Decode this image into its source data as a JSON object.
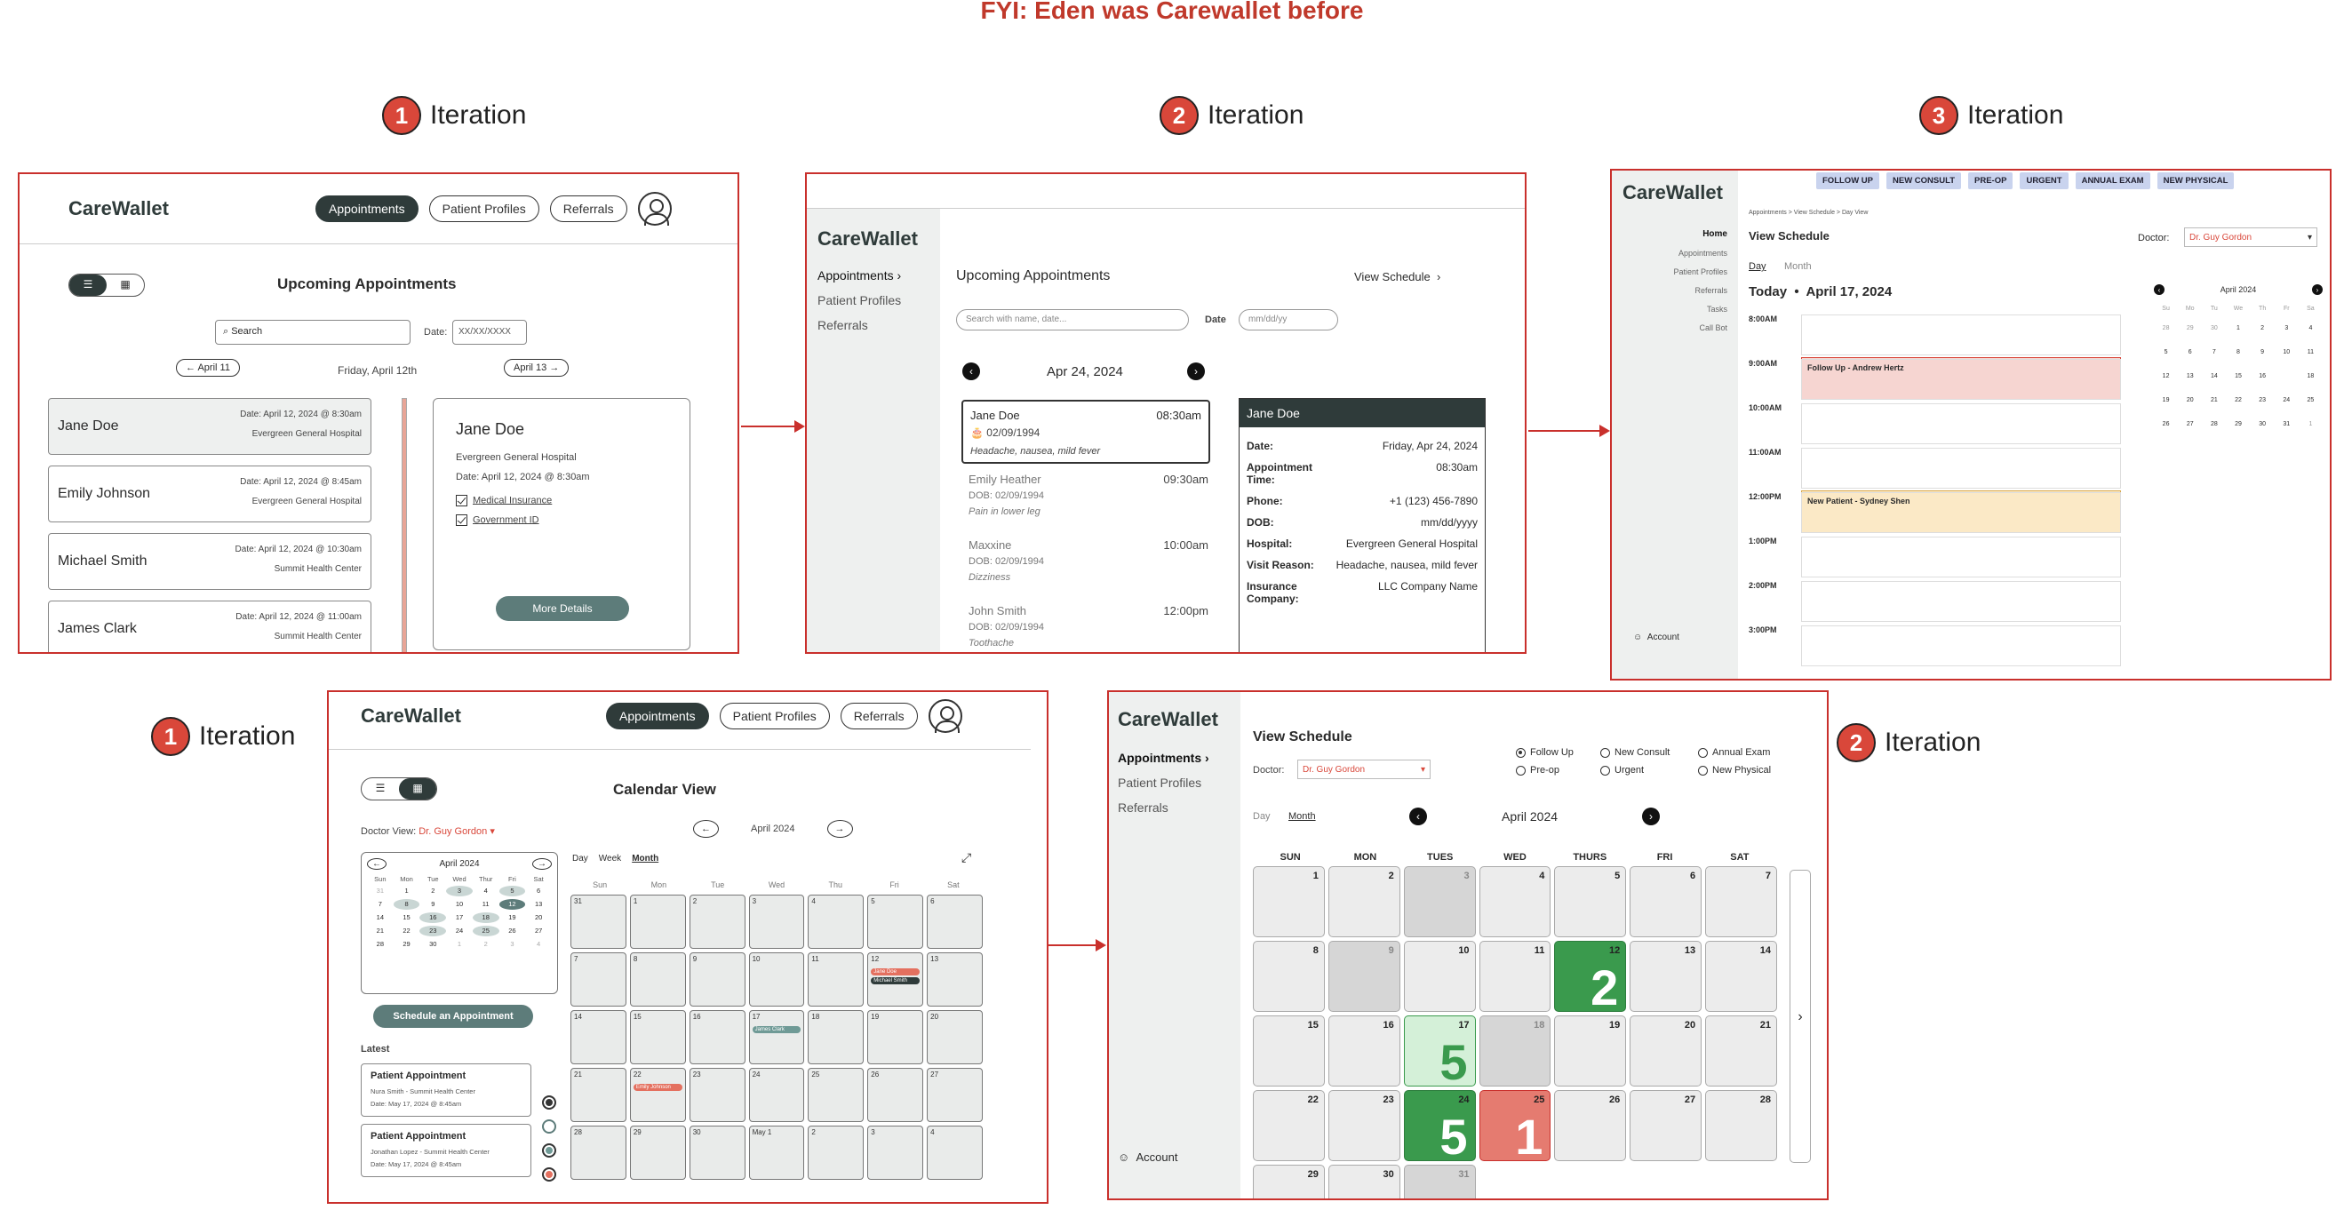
{
  "heading": "FYI: Eden was Carewallet before",
  "iterations": {
    "a": "1",
    "b": "2",
    "c": "3",
    "d": "1",
    "e": "2",
    "label": "Iteration"
  },
  "f1": {
    "logo": "CareWallet",
    "nav": [
      "Appointments",
      "Patient Profiles",
      "Referrals"
    ],
    "title": "Upcoming Appointments",
    "search": "Search",
    "date_label": "Date:",
    "date_ph": "XX/XX/XXXX",
    "prev": "April 11",
    "current": "Friday, April 12th",
    "next": "April 13",
    "list": [
      {
        "name": "Jane Doe",
        "date": "Date: April 12, 2024 @ 8:30am",
        "hosp": "Evergreen General Hospital"
      },
      {
        "name": "Emily Johnson",
        "date": "Date: April 12, 2024 @ 8:45am",
        "hosp": "Evergreen General Hospital"
      },
      {
        "name": "Michael Smith",
        "date": "Date: April 12, 2024 @ 10:30am",
        "hosp": "Summit Health Center"
      },
      {
        "name": "James Clark",
        "date": "Date: April 12, 2024 @ 11:00am",
        "hosp": "Summit Health Center"
      }
    ],
    "detail": {
      "name": "Jane Doe",
      "hosp": "Evergreen General Hospital",
      "date": "Date: April 12, 2024 @ 8:30am",
      "docs": [
        "Medical Insurance",
        "Government ID"
      ],
      "button": "More Details"
    }
  },
  "f2": {
    "logo": "CareWallet",
    "nav": [
      "Appointments",
      "Patient Profiles",
      "Referrals"
    ],
    "title": "Upcoming Appointments",
    "view_schedule": "View Schedule",
    "search_ph": "Search with name, date...",
    "date_label": "Date",
    "date_ph": "mm/dd/yy",
    "date": "Apr 24, 2024",
    "list": [
      {
        "name": "Jane Doe",
        "time": "08:30am",
        "dob": "02/09/1994",
        "reason": "Headache, nausea, mild fever"
      },
      {
        "name": "Emily Heather",
        "time": "09:30am",
        "dob": "DOB: 02/09/1994",
        "reason": "Pain in lower leg"
      },
      {
        "name": "Maxxine",
        "time": "10:00am",
        "dob": "DOB: 02/09/1994",
        "reason": "Dizziness"
      },
      {
        "name": "John Smith",
        "time": "12:00pm",
        "dob": "DOB: 02/09/1994",
        "reason": "Toothache"
      }
    ],
    "detail": {
      "name": "Jane Doe",
      "rows": [
        [
          "Date:",
          "Friday, Apr 24, 2024"
        ],
        [
          "Appointment Time:",
          "08:30am"
        ],
        [
          "Phone:",
          "+1 (123) 456-7890"
        ],
        [
          "DOB:",
          "mm/dd/yyyy"
        ],
        [
          "Hospital:",
          "Evergreen General Hospital"
        ],
        [
          "Visit Reason:",
          "Headache, nausea, mild fever"
        ],
        [
          "Insurance Company:",
          "LLC Company Name"
        ]
      ]
    }
  },
  "f3": {
    "logo": "CareWallet",
    "tags": [
      "FOLLOW UP",
      "NEW CONSULT",
      "PRE-OP",
      "URGENT",
      "ANNUAL EXAM",
      "NEW PHYSICAL"
    ],
    "nav": [
      "Home",
      "Appointments",
      "Patient Profiles",
      "Referrals",
      "Tasks",
      "Call Bot"
    ],
    "account": "Account",
    "breadcrumb": "Appointments  >  View Schedule  >  Day View",
    "title": "View Schedule",
    "doctor_label": "Doctor:",
    "doctor": "Dr. Guy Gordon",
    "tabs": [
      "Day",
      "Month"
    ],
    "today": "Today",
    "date": "April 17, 2024",
    "times": [
      "8:00AM",
      "9:00AM",
      "10:00AM",
      "11:00AM",
      "12:00PM",
      "1:00PM",
      "2:00PM",
      "3:00PM"
    ],
    "events": [
      "Follow Up - Andrew Hertz",
      "New Patient - Sydney Shen"
    ],
    "mini_title": "April 2024",
    "dow": [
      "Su",
      "Mo",
      "Tu",
      "We",
      "Th",
      "Fr",
      "Sa"
    ],
    "mini_days": [
      "28",
      "29",
      "30",
      "1",
      "2",
      "3",
      "4",
      "5",
      "6",
      "7",
      "8",
      "9",
      "10",
      "11",
      "12",
      "13",
      "14",
      "15",
      "16",
      "",
      "18",
      "19",
      "20",
      "21",
      "22",
      "23",
      "24",
      "25",
      "26",
      "27",
      "28",
      "29",
      "30",
      "31",
      "1"
    ]
  },
  "f4": {
    "logo": "CareWallet",
    "nav": [
      "Appointments",
      "Patient Profiles",
      "Referrals"
    ],
    "title": "Calendar View",
    "doctor_label": "Doctor View:",
    "doctor": "Dr. Guy Gordon",
    "month": "April 2024",
    "mini_dow": [
      "Sun",
      "Mon",
      "Tue",
      "Wed",
      "Thur",
      "Fri",
      "Sat"
    ],
    "mini_days": [
      "31",
      "1",
      "2",
      "3",
      "4",
      "5",
      "6",
      "7",
      "8",
      "9",
      "10",
      "11",
      "12",
      "13",
      "14",
      "15",
      "16",
      "17",
      "18",
      "19",
      "20",
      "21",
      "22",
      "23",
      "24",
      "25",
      "26",
      "27",
      "28",
      "29",
      "30",
      "1",
      "2",
      "3",
      "4"
    ],
    "schedule_btn": "Schedule an Appointment",
    "latest": "Latest",
    "latest_items": [
      {
        "title": "Patient Appointment",
        "sub": "Nura Smith - Summit Health Center",
        "date": "Date: May 17, 2024 @ 8:45am"
      },
      {
        "title": "Patient Appointment",
        "sub": "Jonathan Lopez - Summit Health Center",
        "date": "Date: May 17, 2024 @ 8:45am"
      }
    ],
    "views": [
      "Day",
      "Week",
      "Month"
    ],
    "dow": [
      "Sun",
      "Mon",
      "Tue",
      "Wed",
      "Thu",
      "Fri",
      "Sat"
    ],
    "days": [
      "31",
      "1",
      "2",
      "3",
      "4",
      "5",
      "6",
      "7",
      "8",
      "9",
      "10",
      "11",
      "12",
      "13",
      "14",
      "15",
      "16",
      "17",
      "18",
      "19",
      "20",
      "21",
      "22",
      "23",
      "24",
      "25",
      "26",
      "27",
      "28",
      "29",
      "30",
      "May 1",
      "2",
      "3",
      "4"
    ],
    "chips": {
      "fri12": [
        "Jane Doe",
        "Michael Smith"
      ],
      "wed17": "James Clark",
      "mon22": "Emily Johnson"
    }
  },
  "f5": {
    "logo": "CareWallet",
    "nav": [
      "Appointments",
      "Patient Profiles",
      "Referrals"
    ],
    "account": "Account",
    "title": "View Schedule",
    "doctor_label": "Doctor:",
    "doctor": "Dr. Guy Gordon",
    "filters": [
      "Follow Up",
      "New Consult",
      "Annual Exam",
      "Pre-op",
      "Urgent",
      "New Physical"
    ],
    "tabs": [
      "Day",
      "Month"
    ],
    "month": "April 2024",
    "dow": [
      "SUN",
      "MON",
      "TUES",
      "WED",
      "THURS",
      "FRI",
      "SAT"
    ],
    "days": [
      "1",
      "2",
      "3",
      "4",
      "5",
      "6",
      "7",
      "8",
      "9",
      "10",
      "11",
      "12",
      "13",
      "14",
      "15",
      "16",
      "17",
      "18",
      "19",
      "20",
      "21",
      "22",
      "23",
      "24",
      "25",
      "26",
      "27",
      "28",
      "29",
      "30",
      "31"
    ],
    "counts": {
      "12": "2",
      "17": "5",
      "24": "5",
      "25": "1"
    }
  }
}
